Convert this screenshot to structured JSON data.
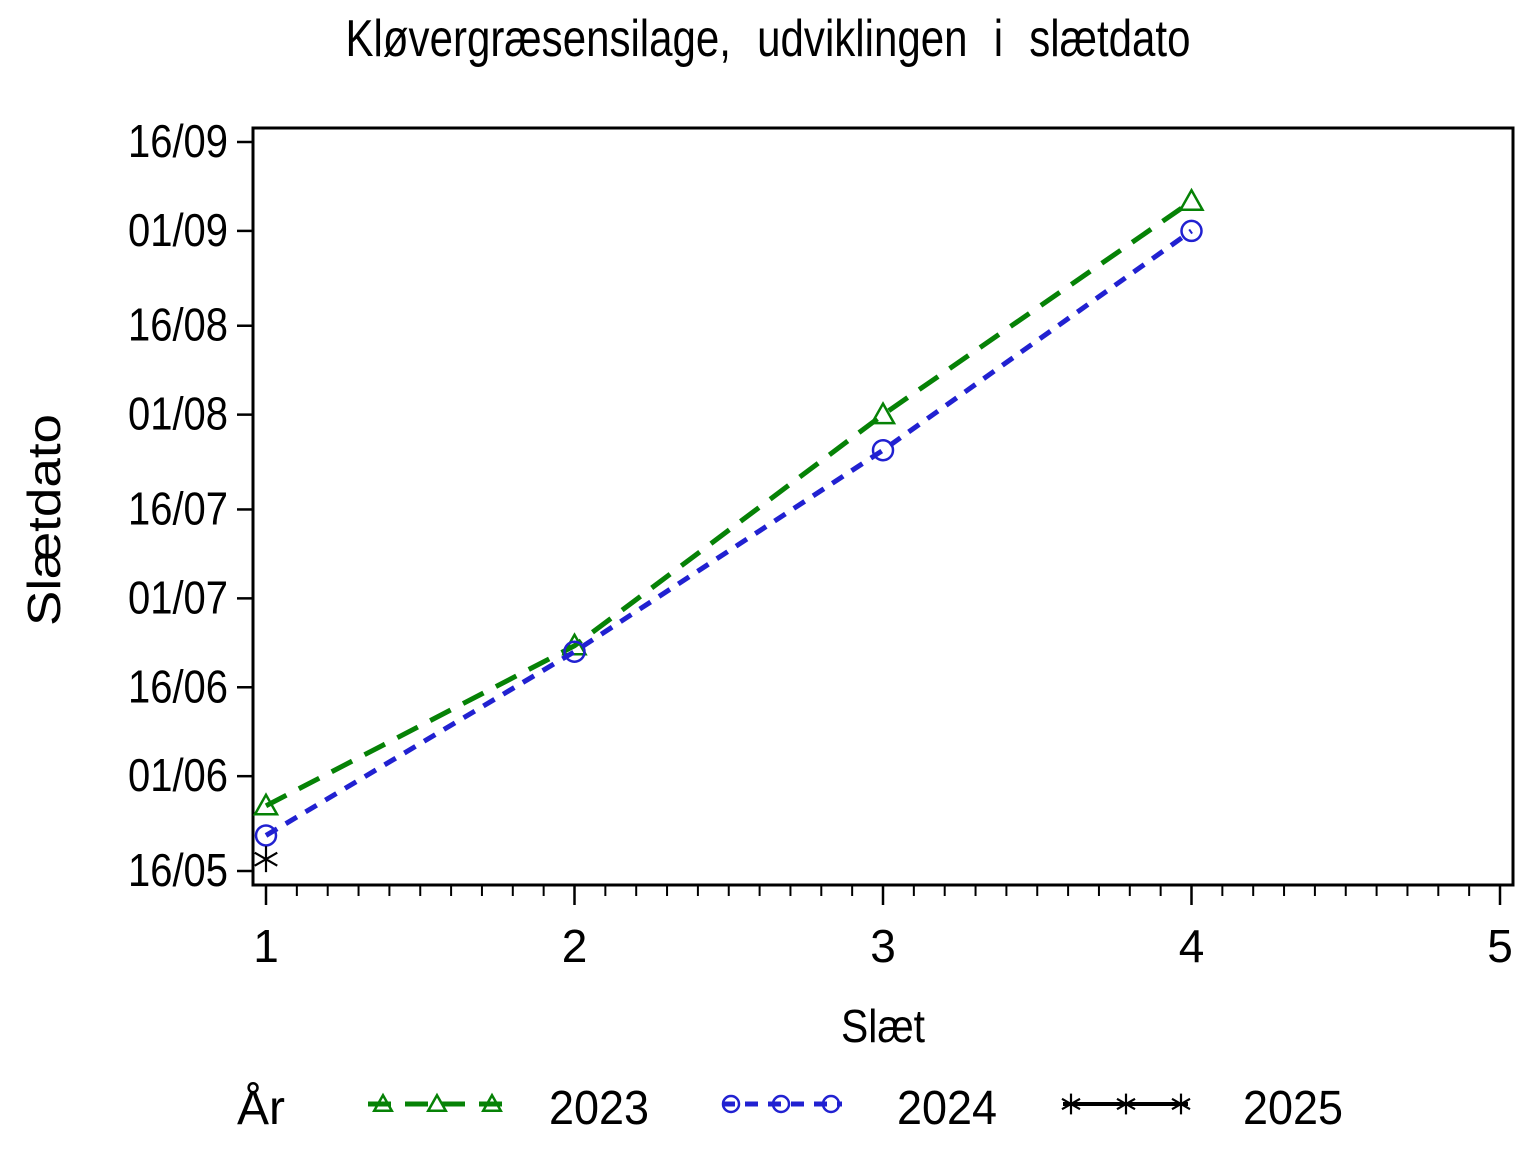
{
  "chart_data": {
    "type": "line",
    "title": "Kløvergræsensilage, udviklingen i slætdato",
    "xlabel": "Slæt",
    "ylabel": "Slætdato",
    "x_ticks": [
      "1",
      "2",
      "3",
      "4",
      "5"
    ],
    "x_minor_divisions": 10,
    "xlim": [
      0.96,
      5.04
    ],
    "y_tick_labels": [
      "16/09",
      "01/09",
      "16/08",
      "01/08",
      "16/07",
      "01/07",
      "16/06",
      "01/06",
      "16/05"
    ],
    "y_date_range": [
      "16/05",
      "16/09"
    ],
    "grid": false,
    "legend_title": "År",
    "legend_position": "bottom",
    "series": [
      {
        "name": "2023",
        "color": "#068206",
        "marker": "triangle",
        "line_style": "dashed-long",
        "x": [
          1,
          2,
          3,
          4
        ],
        "dates": [
          "27/05",
          "23/06",
          "01/08",
          "06/09"
        ]
      },
      {
        "name": "2024",
        "color": "#2121D1",
        "marker": "circle",
        "line_style": "dashed-short",
        "x": [
          1,
          2,
          3,
          4
        ],
        "dates": [
          "22/05",
          "22/06",
          "26/07",
          "01/09"
        ]
      },
      {
        "name": "2025",
        "color": "#000000",
        "marker": "asterisk",
        "line_style": "solid",
        "x": [
          1
        ],
        "dates": [
          "18/05"
        ]
      }
    ]
  }
}
